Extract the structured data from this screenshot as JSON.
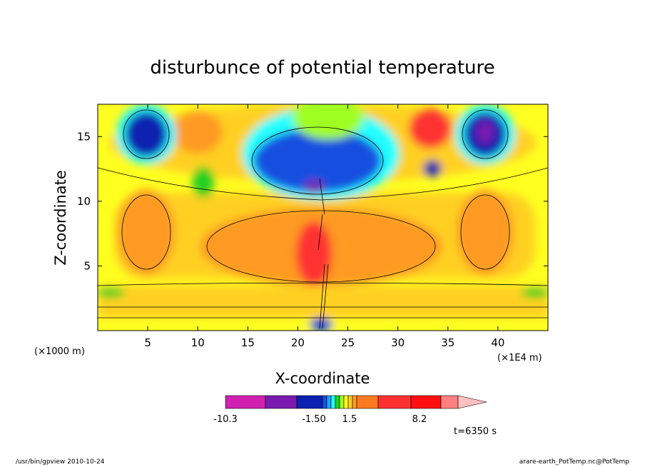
{
  "chart_data": {
    "type": "heatmap",
    "title": "disturbunce of potential temperature",
    "xlabel": "X-coordinate",
    "ylabel": "Z-coordinate",
    "x_units": "(×1E4 m)",
    "y_units": "(×1000 m)",
    "xlim": [
      0,
      45
    ],
    "ylim": [
      0,
      17.5
    ],
    "x_ticks": [
      5,
      10,
      15,
      20,
      25,
      30,
      35,
      40
    ],
    "y_ticks": [
      5,
      10,
      15
    ],
    "grid": false,
    "time_label": "t=6350 s",
    "colorbar": {
      "placement": "bottom",
      "tick_labels": [
        "-10.3",
        "-1.50",
        "1.5",
        "8.2"
      ],
      "colors": [
        "#d020b0",
        "#7a1ab0",
        "#0a20b0",
        "#1850e0",
        "#20a0ff",
        "#20ffff",
        "#20d020",
        "#a0ff20",
        "#ffff20",
        "#ffd020",
        "#ff9a20",
        "#ff7a20",
        "#ff3030",
        "#ff1010",
        "#ff8080",
        "#ffc0c0"
      ],
      "extend": "max"
    },
    "features": [
      {
        "x": 4.8,
        "z": 15.5,
        "value": -6
      },
      {
        "x": 38.8,
        "z": 15.5,
        "value": -9
      },
      {
        "x": 22.0,
        "z": 12.0,
        "value": -9
      },
      {
        "x": 25.5,
        "z": 15.0,
        "value": -4
      },
      {
        "x": 33.5,
        "z": 12.0,
        "value": -3
      },
      {
        "x": 4.8,
        "z": 7.5,
        "value": 3
      },
      {
        "x": 38.8,
        "z": 7.5,
        "value": 3
      },
      {
        "x": 10.0,
        "z": 15.5,
        "value": 3
      },
      {
        "x": 33.5,
        "z": 15.5,
        "value": 6
      },
      {
        "x": 21.5,
        "z": 6.5,
        "value": 7
      },
      {
        "x": 10.0,
        "z": 12.0,
        "value": -1
      }
    ]
  },
  "footer": {
    "left": "/usr/bin/gpview   2010-10-24",
    "right": "arare-earth_PotTemp.nc@PotTemp"
  }
}
